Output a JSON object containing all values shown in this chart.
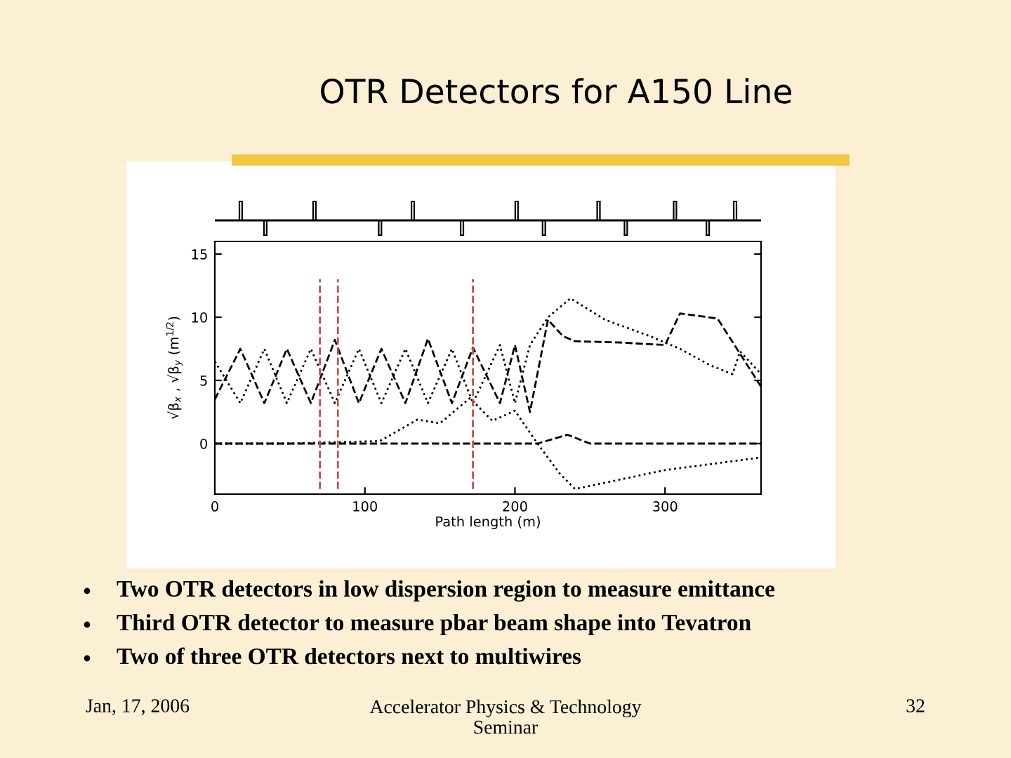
{
  "chart_data": {
    "type": "line",
    "title": "OTR Detectors for A150 Line",
    "xlabel": "Path length (m)",
    "ylabel": "√β$_{x}$ , √β$_{y}$ (m$^{1/2}$)",
    "xlim": [
      0,
      364
    ],
    "ylim": [
      -4,
      16
    ],
    "xticks": [
      0,
      100,
      200,
      300
    ],
    "yticks": [
      0,
      5,
      10,
      15
    ],
    "grid": false,
    "legend": false,
    "series": [
      {
        "color": "#000000",
        "line_style": "dotted",
        "x": [
          0,
          17,
          33,
          48,
          64,
          80,
          96,
          111,
          127,
          142,
          158,
          172,
          190,
          200,
          210,
          222,
          237,
          260,
          290,
          310,
          330,
          345,
          350,
          364
        ],
        "values": [
          6.5,
          3.2,
          7.5,
          3.2,
          7.5,
          3.2,
          7.5,
          3.2,
          7.5,
          3.2,
          7.5,
          3.2,
          7.8,
          3.2,
          7.8,
          10,
          11.5,
          9.8,
          8.5,
          7.5,
          6.2,
          5.5,
          7.3,
          5.5
        ]
      },
      {
        "color": "#000000",
        "line_style": "dashed",
        "x": [
          0,
          17,
          33,
          48,
          64,
          80,
          96,
          111,
          127,
          142,
          158,
          172,
          190,
          200,
          210,
          222,
          232,
          240,
          270,
          300,
          310,
          335,
          364
        ],
        "values": [
          3.5,
          7.5,
          3.2,
          7.5,
          3.2,
          8.2,
          3.2,
          7.5,
          3.2,
          8.3,
          3.2,
          7.6,
          3.2,
          7.8,
          2.5,
          9.8,
          8.5,
          8.1,
          8.0,
          7.8,
          10.3,
          9.9,
          4.5
        ]
      },
      {
        "color": "#000000",
        "line_style": "dotted",
        "x": [
          0,
          50,
          110,
          135,
          150,
          170,
          185,
          200,
          215,
          230,
          240,
          300,
          364
        ],
        "values": [
          0,
          0,
          0.2,
          1.9,
          1.6,
          3.6,
          1.8,
          2.6,
          0,
          -2.4,
          -3.6,
          -2.1,
          -1.1
        ]
      },
      {
        "color": "#000000",
        "line_style": "dashed",
        "x": [
          0,
          100,
          215,
          235,
          250,
          364
        ],
        "values": [
          0,
          0,
          0,
          0.7,
          0,
          0
        ]
      }
    ],
    "ref_lines": [
      {
        "axis": "x",
        "value": 70,
        "color": "#c0504d",
        "line_style": "dashed"
      },
      {
        "axis": "x",
        "value": 82,
        "color": "#c0504d",
        "line_style": "dashed"
      },
      {
        "axis": "x",
        "value": 172,
        "color": "#c0504d",
        "line_style": "dashed"
      }
    ],
    "annotations": [
      "Two OTR detectors in low dispersion region to measure emittance",
      "Third OTR detector to measure pbar beam shape into Tevatron",
      "Two of three OTR detectors next to multiwires",
      "Jan, 17, 2006",
      "Accelerator Physics & Technology\nSeminar",
      "32"
    ]
  }
}
